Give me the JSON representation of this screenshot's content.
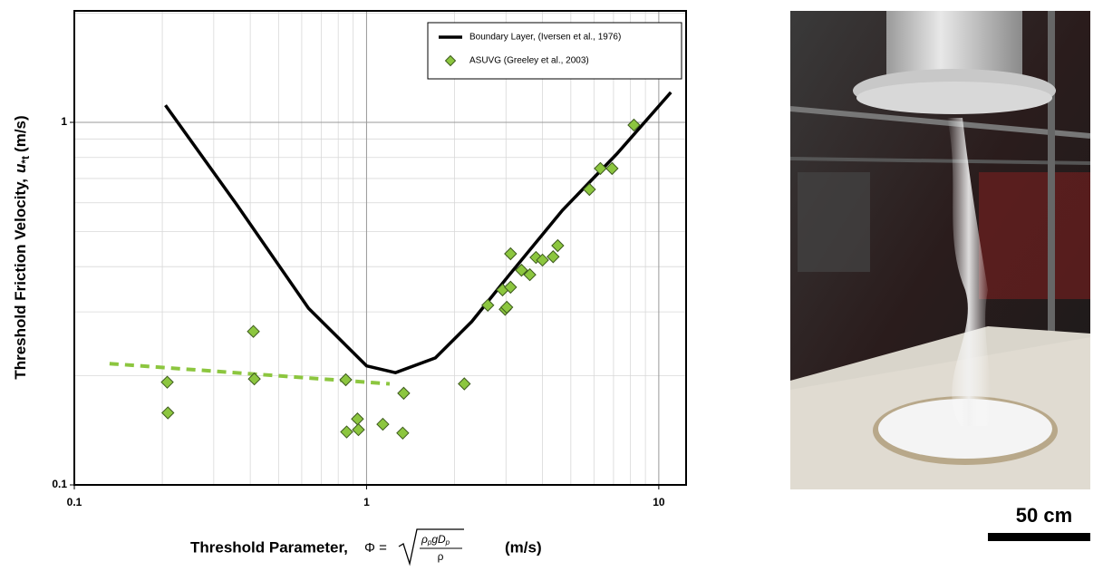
{
  "chart_data": {
    "type": "scatter",
    "xlabel": "Threshold Parameter,",
    "formula": {
      "lhs": "Φ =",
      "numerator": [
        "ρ",
        "p",
        "gD",
        "p"
      ],
      "denominator": "ρ"
    },
    "xunit": "(m/s)",
    "ylabel": "Threshold Friction Velocity,",
    "ysymbol": "u",
    "ysub": "*t",
    "yunit": "(m/s)",
    "xlog": true,
    "ylog": true,
    "grid": true,
    "legend": "top-right",
    "xlim": [
      0.1,
      12.4
    ],
    "ylim": [
      0.1,
      2.03
    ],
    "xticks": [
      0.1,
      1,
      10
    ],
    "yticks": [
      0.1,
      1
    ],
    "series": [
      {
        "name": "Boundary Layer, (Iversen et al., 1976)",
        "color": "#000000",
        "mark": "line",
        "x": [
          0.205,
          0.358,
          0.633,
          1,
          1.256,
          1.72,
          2.29,
          3.05,
          4.68,
          7.18,
          11.0
        ],
        "values": [
          1.115,
          0.596,
          0.307,
          0.213,
          0.204,
          0.224,
          0.282,
          0.376,
          0.572,
          0.818,
          1.21
        ]
      },
      {
        "name": "ASUVG (Greeley et al., 2003)",
        "color": "#8cc63f",
        "mark": "diamond",
        "x": [
          0.208,
          0.209,
          0.41,
          0.413,
          0.849,
          0.855,
          0.931,
          0.938,
          1.137,
          1.33,
          1.34,
          2.16,
          2.6,
          2.92,
          2.98,
          3.02,
          3.11,
          3.11,
          3.39,
          3.62,
          3.8,
          4.0,
          4.35,
          4.51,
          5.79,
          6.31,
          6.92,
          8.22
        ],
        "values": [
          0.192,
          0.158,
          0.265,
          0.196,
          0.195,
          0.14,
          0.152,
          0.142,
          0.147,
          0.139,
          0.179,
          0.19,
          0.313,
          0.345,
          0.305,
          0.309,
          0.351,
          0.434,
          0.391,
          0.38,
          0.424,
          0.417,
          0.426,
          0.457,
          0.653,
          0.746,
          0.746,
          0.983
        ]
      }
    ],
    "fit": {
      "color": "#8cc63f",
      "x": [
        0.132,
        1.2
      ],
      "values": [
        0.216,
        0.19
      ]
    },
    "scale_bar": "50 cm"
  }
}
